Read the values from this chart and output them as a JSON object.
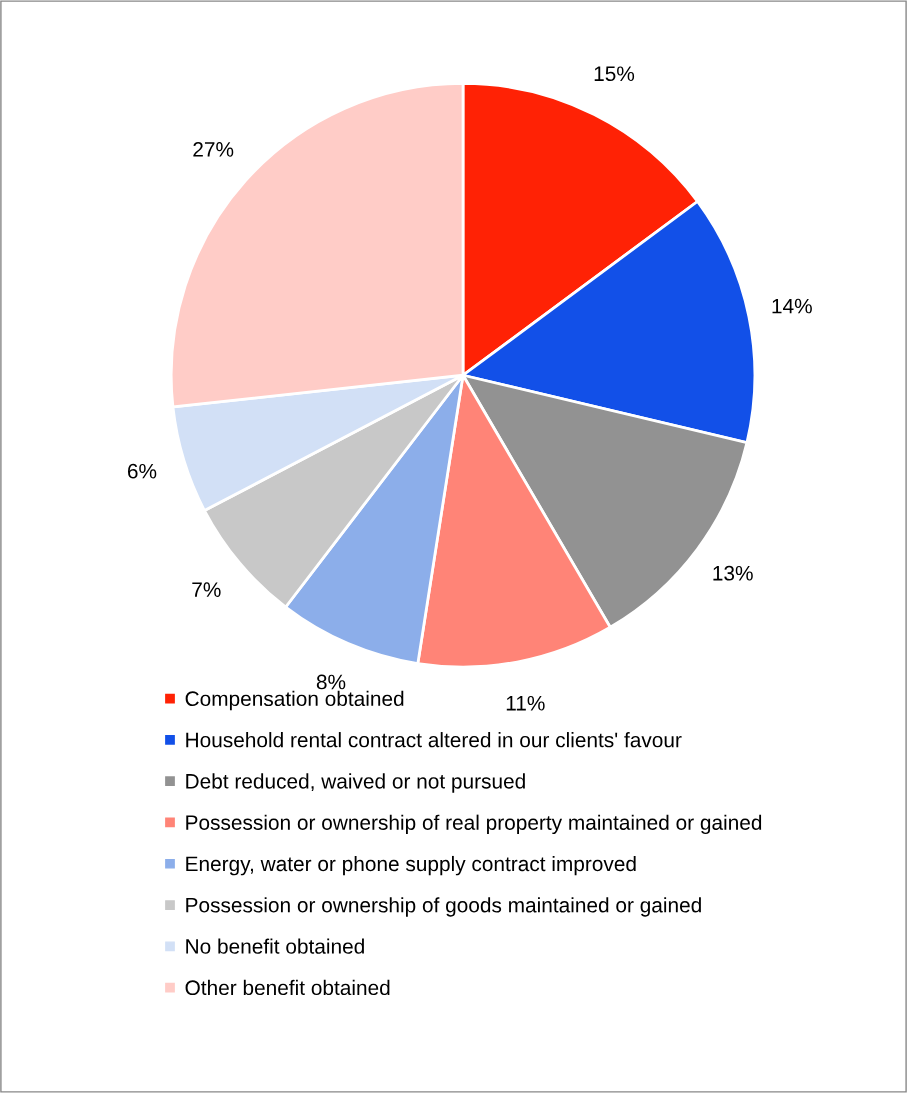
{
  "chart_data": {
    "type": "pie",
    "categories": [
      "Compensation obtained",
      "Household rental contract altered in our clients' favour",
      "Debt reduced, waived or not pursued",
      "Possession or ownership of real property maintained or gained",
      "Energy, water or phone supply contract improved",
      "Possession or ownership of goods maintained or gained",
      "No benefit obtained",
      "Other benefit obtained"
    ],
    "values": [
      15,
      14,
      13,
      11,
      8,
      7,
      6,
      27
    ],
    "colors": [
      "#ff2205",
      "#1250e8",
      "#929292",
      "#ff8477",
      "#8caeea",
      "#c8c8c8",
      "#d2e0f6",
      "#ffccc7"
    ],
    "value_labels": [
      "15%",
      "14%",
      "13%",
      "11%",
      "8%",
      "7%",
      "6%",
      "27%"
    ],
    "legend": "bottom"
  }
}
